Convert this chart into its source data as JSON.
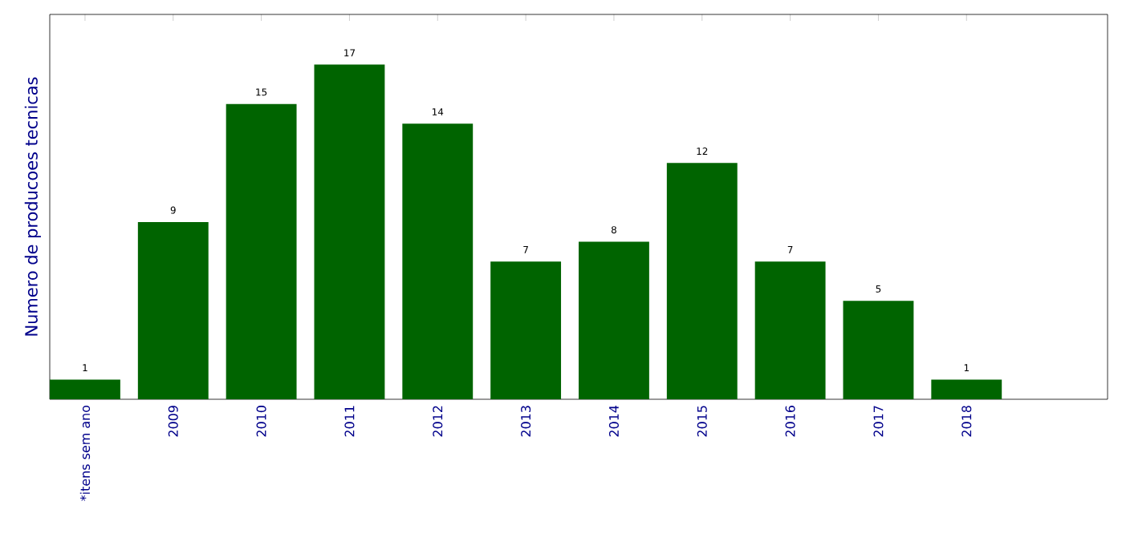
{
  "chart_data": {
    "type": "bar",
    "ylabel": "Numero de producoes tecnicas",
    "categories": [
      "*itens sem ano",
      "2009",
      "2010",
      "2011",
      "2012",
      "2013",
      "2014",
      "2015",
      "2016",
      "2017",
      "2018"
    ],
    "values": [
      1,
      9,
      15,
      17,
      14,
      7,
      8,
      12,
      7,
      5,
      1
    ],
    "color": "#006400",
    "tick_labels": "x",
    "data_labels": true
  }
}
